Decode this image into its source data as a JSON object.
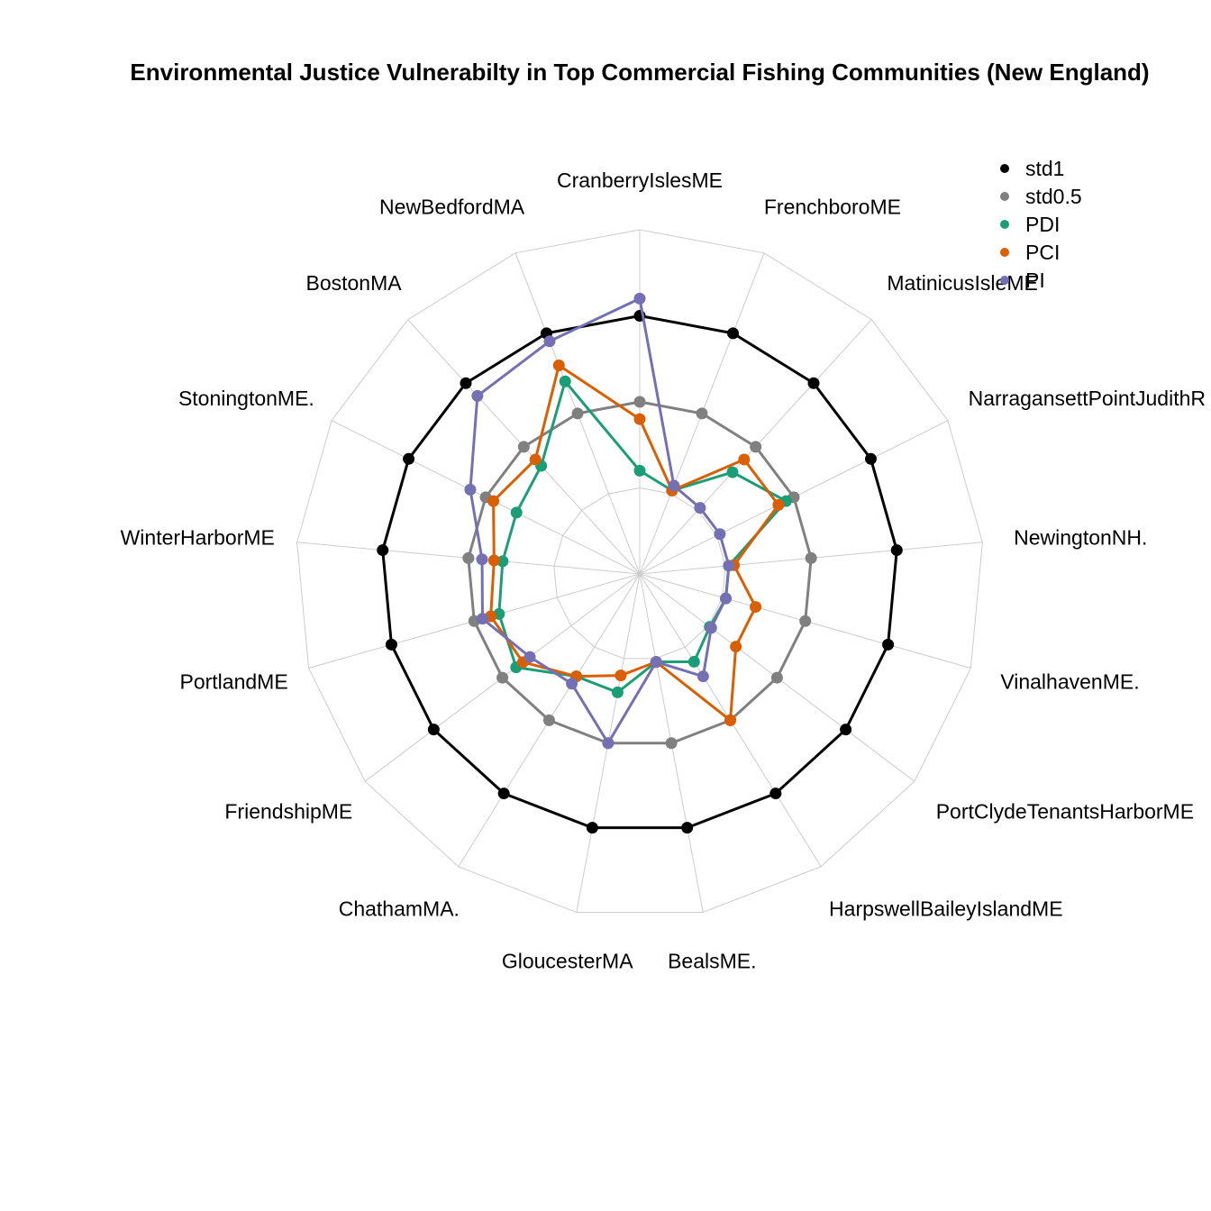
{
  "chart_data": {
    "type": "radar",
    "title": "Environmental Justice Vulnerabilty in Top Commercial Fishing Communities (New England)",
    "categories": [
      "CranberryIslesME",
      "FrenchboroME",
      "MatinicusIsleME",
      "NarragansettPointJudithRI",
      "NewingtonNH.",
      "VinalhavenME.",
      "PortClydeTenantsHarborME",
      "HarpswellBaileyIslandME",
      "BealsME.",
      "GloucesterMA",
      "ChathamMA.",
      "FriendshipME",
      "PortlandME",
      "WinterHarborME",
      "StoningtonME.",
      "BostonMA",
      "NewBedfordMA"
    ],
    "category_display": [
      "CranberryIslesME",
      "FrenchboroME",
      "MatinicusIsleME",
      "NarragansettPointJudithR",
      "NewingtonNH.",
      "VinalhavenME.",
      "PortClydeTenantsHarborME",
      "HarpswellBaileyIslandME",
      "BealsME.",
      "GloucesterMA",
      "ChathamMA.",
      "FriendshipME",
      "PortlandME",
      "WinterHarborME",
      "StoningtonME.",
      "BostonMA",
      "NewBedfordMA"
    ],
    "series": [
      {
        "name": "std1",
        "color": "#000000",
        "values": [
          1,
          1,
          1,
          1,
          1,
          1,
          1,
          1,
          1,
          1,
          1,
          1,
          1,
          1,
          1,
          1,
          1
        ]
      },
      {
        "name": "std0.5",
        "color": "#808080",
        "values": [
          0.5,
          0.5,
          0.5,
          0.5,
          0.5,
          0.5,
          0.5,
          0.5,
          0.5,
          0.5,
          0.5,
          0.5,
          0.5,
          0.5,
          0.5,
          0.5,
          0.5
        ]
      },
      {
        "name": "PDI",
        "color": "#1B9E77",
        "values": [
          0.1,
          0.02,
          0.3,
          0.45,
          0.02,
          0.02,
          0.01,
          0.1,
          0.02,
          0.2,
          0.2,
          0.4,
          0.35,
          0.3,
          0.3,
          0.35,
          0.7
        ]
      },
      {
        "name": "PCI",
        "color": "#D95F02",
        "values": [
          0.4,
          0.02,
          0.4,
          0.4,
          0.05,
          0.2,
          0.2,
          0.5,
          0.02,
          0.1,
          0.2,
          0.35,
          0.4,
          0.35,
          0.45,
          0.4,
          0.8
        ]
      },
      {
        "name": "PI",
        "color": "#7570B3",
        "values": [
          1.1,
          0.05,
          0.02,
          0.02,
          0.02,
          0.02,
          0.02,
          0.2,
          0.02,
          0.5,
          0.25,
          0.3,
          0.45,
          0.42,
          0.6,
          0.9,
          0.95
        ]
      }
    ],
    "rlim": [
      -0.5,
      1.5
    ],
    "gridlines": [
      -0.5,
      0,
      0.5,
      1,
      1.5
    ],
    "legend_position": "top-right"
  }
}
